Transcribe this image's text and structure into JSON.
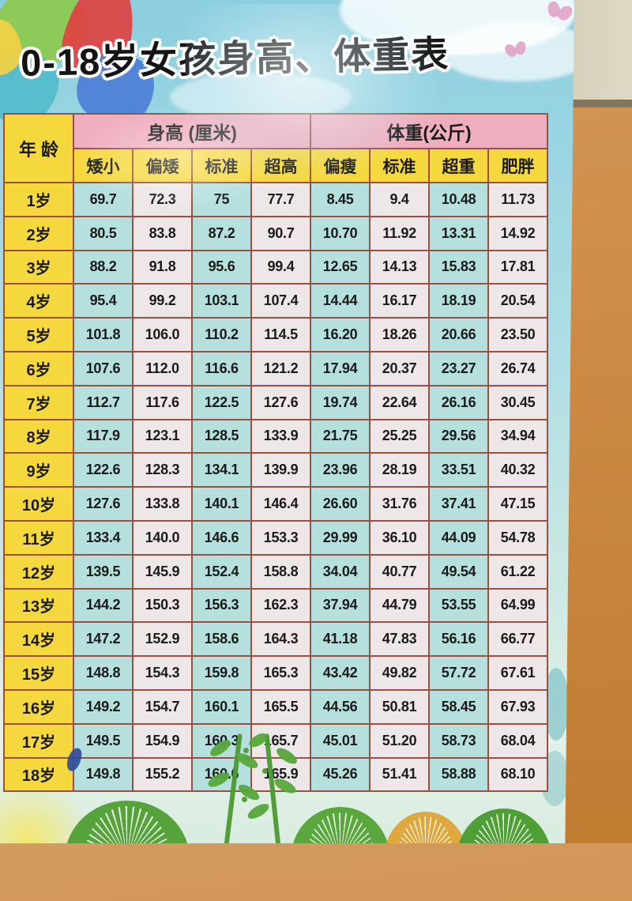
{
  "title": "0-18岁女孩身高、体重表",
  "table": {
    "age_header": "年 龄",
    "height_header": "身高 (厘米)",
    "weight_header": "体重(公斤)",
    "sub_headers": [
      "矮小",
      "偏矮",
      "标准",
      "超高",
      "偏瘦",
      "标准",
      "超重",
      "肥胖"
    ],
    "rows": [
      {
        "age": "1岁",
        "values": [
          "69.7",
          "72.3",
          "75",
          "77.7",
          "8.45",
          "9.4",
          "10.48",
          "11.73"
        ]
      },
      {
        "age": "2岁",
        "values": [
          "80.5",
          "83.8",
          "87.2",
          "90.7",
          "10.70",
          "11.92",
          "13.31",
          "14.92"
        ]
      },
      {
        "age": "3岁",
        "values": [
          "88.2",
          "91.8",
          "95.6",
          "99.4",
          "12.65",
          "14.13",
          "15.83",
          "17.81"
        ]
      },
      {
        "age": "4岁",
        "values": [
          "95.4",
          "99.2",
          "103.1",
          "107.4",
          "14.44",
          "16.17",
          "18.19",
          "20.54"
        ]
      },
      {
        "age": "5岁",
        "values": [
          "101.8",
          "106.0",
          "110.2",
          "114.5",
          "16.20",
          "18.26",
          "20.66",
          "23.50"
        ]
      },
      {
        "age": "6岁",
        "values": [
          "107.6",
          "112.0",
          "116.6",
          "121.2",
          "17.94",
          "20.37",
          "23.27",
          "26.74"
        ]
      },
      {
        "age": "7岁",
        "values": [
          "112.7",
          "117.6",
          "122.5",
          "127.6",
          "19.74",
          "22.64",
          "26.16",
          "30.45"
        ]
      },
      {
        "age": "8岁",
        "values": [
          "117.9",
          "123.1",
          "128.5",
          "133.9",
          "21.75",
          "25.25",
          "29.56",
          "34.94"
        ]
      },
      {
        "age": "9岁",
        "values": [
          "122.6",
          "128.3",
          "134.1",
          "139.9",
          "23.96",
          "28.19",
          "33.51",
          "40.32"
        ]
      },
      {
        "age": "10岁",
        "values": [
          "127.6",
          "133.8",
          "140.1",
          "146.4",
          "26.60",
          "31.76",
          "37.41",
          "47.15"
        ]
      },
      {
        "age": "11岁",
        "values": [
          "133.4",
          "140.0",
          "146.6",
          "153.3",
          "29.99",
          "36.10",
          "44.09",
          "54.78"
        ]
      },
      {
        "age": "12岁",
        "values": [
          "139.5",
          "145.9",
          "152.4",
          "158.8",
          "34.04",
          "40.77",
          "49.54",
          "61.22"
        ]
      },
      {
        "age": "13岁",
        "values": [
          "144.2",
          "150.3",
          "156.3",
          "162.3",
          "37.94",
          "44.79",
          "53.55",
          "64.99"
        ]
      },
      {
        "age": "14岁",
        "values": [
          "147.2",
          "152.9",
          "158.6",
          "164.3",
          "41.18",
          "47.83",
          "56.16",
          "66.77"
        ]
      },
      {
        "age": "15岁",
        "values": [
          "148.8",
          "154.3",
          "159.8",
          "165.3",
          "43.42",
          "49.82",
          "57.72",
          "67.61"
        ]
      },
      {
        "age": "16岁",
        "values": [
          "149.2",
          "154.7",
          "160.1",
          "165.5",
          "44.56",
          "50.81",
          "58.45",
          "67.93"
        ]
      },
      {
        "age": "17岁",
        "values": [
          "149.5",
          "154.9",
          "160.3",
          "165.7",
          "45.01",
          "51.20",
          "58.73",
          "68.04"
        ]
      },
      {
        "age": "18岁",
        "values": [
          "149.8",
          "155.2",
          "160.6",
          "165.9",
          "45.26",
          "51.41",
          "58.88",
          "68.10"
        ]
      }
    ]
  },
  "chart_data": {
    "type": "table",
    "title": "0-18岁女孩身高、体重表",
    "column_groups": [
      {
        "label": "身高 (厘米)",
        "span": 4
      },
      {
        "label": "体重(公斤)",
        "span": 4
      }
    ],
    "columns": [
      "年龄",
      "矮小",
      "偏矮",
      "标准",
      "超高",
      "偏瘦",
      "标准",
      "超重",
      "肥胖"
    ],
    "rows": [
      [
        "1岁",
        69.7,
        72.3,
        75,
        77.7,
        8.45,
        9.4,
        10.48,
        11.73
      ],
      [
        "2岁",
        80.5,
        83.8,
        87.2,
        90.7,
        10.7,
        11.92,
        13.31,
        14.92
      ],
      [
        "3岁",
        88.2,
        91.8,
        95.6,
        99.4,
        12.65,
        14.13,
        15.83,
        17.81
      ],
      [
        "4岁",
        95.4,
        99.2,
        103.1,
        107.4,
        14.44,
        16.17,
        18.19,
        20.54
      ],
      [
        "5岁",
        101.8,
        106.0,
        110.2,
        114.5,
        16.2,
        18.26,
        20.66,
        23.5
      ],
      [
        "6岁",
        107.6,
        112.0,
        116.6,
        121.2,
        17.94,
        20.37,
        23.27,
        26.74
      ],
      [
        "7岁",
        112.7,
        117.6,
        122.5,
        127.6,
        19.74,
        22.64,
        26.16,
        30.45
      ],
      [
        "8岁",
        117.9,
        123.1,
        128.5,
        133.9,
        21.75,
        25.25,
        29.56,
        34.94
      ],
      [
        "9岁",
        122.6,
        128.3,
        134.1,
        139.9,
        23.96,
        28.19,
        33.51,
        40.32
      ],
      [
        "10岁",
        127.6,
        133.8,
        140.1,
        146.4,
        26.6,
        31.76,
        37.41,
        47.15
      ],
      [
        "11岁",
        133.4,
        140.0,
        146.6,
        153.3,
        29.99,
        36.1,
        44.09,
        54.78
      ],
      [
        "12岁",
        139.5,
        145.9,
        152.4,
        158.8,
        34.04,
        40.77,
        49.54,
        61.22
      ],
      [
        "13岁",
        144.2,
        150.3,
        156.3,
        162.3,
        37.94,
        44.79,
        53.55,
        64.99
      ],
      [
        "14岁",
        147.2,
        152.9,
        158.6,
        164.3,
        41.18,
        47.83,
        56.16,
        66.77
      ],
      [
        "15岁",
        148.8,
        154.3,
        159.8,
        165.3,
        43.42,
        49.82,
        57.72,
        67.61
      ],
      [
        "16岁",
        149.2,
        154.7,
        160.1,
        165.5,
        44.56,
        50.81,
        58.45,
        67.93
      ],
      [
        "17岁",
        149.5,
        154.9,
        160.3,
        165.7,
        45.01,
        51.2,
        58.73,
        68.04
      ],
      [
        "18岁",
        149.8,
        155.2,
        160.6,
        165.9,
        45.26,
        51.41,
        58.88,
        68.1
      ]
    ]
  },
  "colors": {
    "header_pink": "#efaebe",
    "header_yellow": "#f5d83e",
    "cell_cyan": "#b5e0de",
    "cell_white": "#eee7e8",
    "grid_border": "#9c4f41",
    "poster_sky": "#8bcede",
    "wall_orange": "#cd8a44"
  }
}
